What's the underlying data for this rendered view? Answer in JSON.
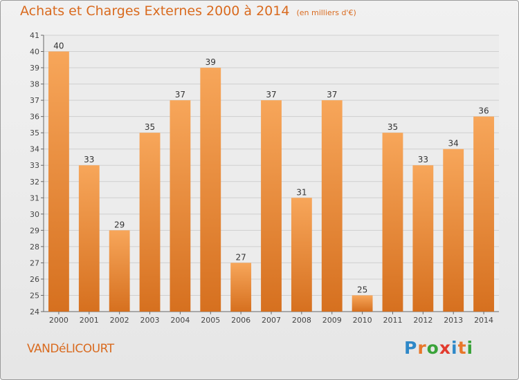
{
  "title": "Achats et Charges Externes 2000 à 2014",
  "unit": "(en milliers d'€)",
  "commune": "VANDéLICOURT",
  "logo": {
    "letters": [
      "P",
      "r",
      "o",
      "x",
      "i",
      "t",
      "i"
    ],
    "colors": [
      "#2e88c8",
      "#e8772a",
      "#3aa33a",
      "#e23b2e",
      "#2e88c8",
      "#e8772a",
      "#3aa33a"
    ]
  },
  "colors": {
    "bar_top": "#f7a65a",
    "bar_bottom": "#d6701f",
    "text": "#d96a1e"
  },
  "chart_data": {
    "type": "bar",
    "categories": [
      "2000",
      "2001",
      "2002",
      "2003",
      "2004",
      "2005",
      "2006",
      "2007",
      "2008",
      "2009",
      "2010",
      "2011",
      "2012",
      "2013",
      "2014"
    ],
    "values": [
      40,
      33,
      29,
      35,
      37,
      39,
      27,
      37,
      31,
      37,
      25,
      35,
      33,
      34,
      36
    ],
    "ylim": [
      24,
      41
    ],
    "yticks": [
      24,
      25,
      26,
      27,
      28,
      29,
      30,
      31,
      32,
      33,
      34,
      35,
      36,
      37,
      38,
      39,
      40,
      41
    ],
    "grid": true,
    "data_labels": true
  }
}
